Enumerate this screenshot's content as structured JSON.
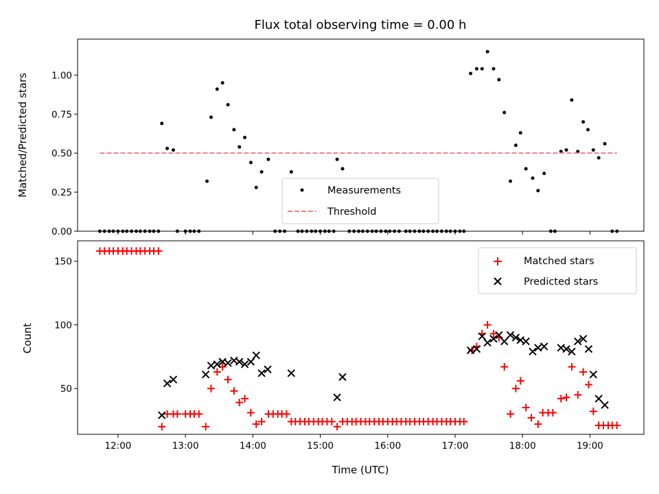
{
  "title": "Flux total observing time = 0.00 h",
  "chart_data": [
    {
      "type": "scatter",
      "ylabel": "Matched/Predicted stars",
      "xlim": [
        11.4,
        19.8
      ],
      "ylim": [
        0,
        1.23
      ],
      "yticks": [
        0.0,
        0.25,
        0.5,
        0.75,
        1.0
      ],
      "ytick_labels": [
        "0.00",
        "0.25",
        "0.50",
        "0.75",
        "1.00"
      ],
      "legend_position": "bottom-center",
      "series": [
        {
          "name": "Measurements",
          "color": "#000000",
          "marker": "dot",
          "points": [
            [
              11.73,
              0
            ],
            [
              11.8,
              0
            ],
            [
              11.87,
              0
            ],
            [
              11.93,
              0
            ],
            [
              12.0,
              0
            ],
            [
              12.07,
              0
            ],
            [
              12.13,
              0
            ],
            [
              12.2,
              0
            ],
            [
              12.27,
              0
            ],
            [
              12.33,
              0
            ],
            [
              12.4,
              0
            ],
            [
              12.47,
              0
            ],
            [
              12.53,
              0
            ],
            [
              12.6,
              0
            ],
            [
              12.65,
              0.69
            ],
            [
              12.73,
              0.53
            ],
            [
              12.82,
              0.52
            ],
            [
              12.88,
              0
            ],
            [
              13.0,
              0
            ],
            [
              13.07,
              0
            ],
            [
              13.13,
              0
            ],
            [
              13.2,
              0
            ],
            [
              13.32,
              0.32
            ],
            [
              13.38,
              0.73
            ],
            [
              13.47,
              0.91
            ],
            [
              13.55,
              0.95
            ],
            [
              13.63,
              0.81
            ],
            [
              13.72,
              0.65
            ],
            [
              13.8,
              0.54
            ],
            [
              13.88,
              0.6
            ],
            [
              13.97,
              0.44
            ],
            [
              14.05,
              0.28
            ],
            [
              14.13,
              0.38
            ],
            [
              14.23,
              0.46
            ],
            [
              14.33,
              0
            ],
            [
              14.4,
              0
            ],
            [
              14.47,
              0
            ],
            [
              14.57,
              0.38
            ],
            [
              14.67,
              0
            ],
            [
              14.73,
              0
            ],
            [
              14.8,
              0
            ],
            [
              14.87,
              0
            ],
            [
              14.93,
              0
            ],
            [
              15.0,
              0
            ],
            [
              15.07,
              0
            ],
            [
              15.13,
              0
            ],
            [
              15.2,
              0
            ],
            [
              15.25,
              0.46
            ],
            [
              15.33,
              0.4
            ],
            [
              15.43,
              0
            ],
            [
              15.5,
              0
            ],
            [
              15.57,
              0
            ],
            [
              15.63,
              0
            ],
            [
              15.7,
              0
            ],
            [
              15.77,
              0
            ],
            [
              15.83,
              0
            ],
            [
              15.9,
              0
            ],
            [
              15.97,
              0
            ],
            [
              16.03,
              0
            ],
            [
              16.1,
              0
            ],
            [
              16.17,
              0
            ],
            [
              16.27,
              0
            ],
            [
              16.33,
              0
            ],
            [
              16.4,
              0
            ],
            [
              16.47,
              0
            ],
            [
              16.53,
              0
            ],
            [
              16.6,
              0
            ],
            [
              16.67,
              0
            ],
            [
              16.73,
              0
            ],
            [
              16.8,
              0
            ],
            [
              16.87,
              0
            ],
            [
              16.93,
              0
            ],
            [
              17.0,
              0
            ],
            [
              17.07,
              0
            ],
            [
              17.13,
              0
            ],
            [
              17.23,
              1.01
            ],
            [
              17.32,
              1.04
            ],
            [
              17.4,
              1.04
            ],
            [
              17.48,
              1.15
            ],
            [
              17.57,
              1.04
            ],
            [
              17.65,
              0.97
            ],
            [
              17.73,
              0.76
            ],
            [
              17.82,
              0.32
            ],
            [
              17.9,
              0.55
            ],
            [
              17.97,
              0.63
            ],
            [
              18.05,
              0.4
            ],
            [
              18.15,
              0.34
            ],
            [
              18.23,
              0.26
            ],
            [
              18.32,
              0.37
            ],
            [
              18.42,
              0
            ],
            [
              18.48,
              0
            ],
            [
              18.57,
              0.51
            ],
            [
              18.65,
              0.52
            ],
            [
              18.73,
              0.84
            ],
            [
              18.82,
              0.51
            ],
            [
              18.9,
              0.7
            ],
            [
              18.97,
              0.65
            ],
            [
              19.05,
              0.52
            ],
            [
              19.13,
              0.47
            ],
            [
              19.22,
              0.56
            ],
            [
              19.33,
              0
            ],
            [
              19.4,
              0
            ]
          ]
        },
        {
          "name": "Threshold",
          "color": "#f08080",
          "style": "dashed",
          "points": [
            [
              11.73,
              0.5
            ],
            [
              19.4,
              0.5
            ]
          ]
        }
      ]
    },
    {
      "type": "scatter",
      "xlabel": "Time (UTC)",
      "ylabel": "Count",
      "xlim": [
        11.4,
        19.8
      ],
      "ylim": [
        14,
        166
      ],
      "yticks": [
        50,
        100,
        150
      ],
      "xticks": [
        12,
        13,
        14,
        15,
        16,
        17,
        18,
        19
      ],
      "xtick_labels": [
        "12:00",
        "13:00",
        "14:00",
        "15:00",
        "16:00",
        "17:00",
        "18:00",
        "19:00"
      ],
      "legend_position": "top-right",
      "series": [
        {
          "name": "Matched stars",
          "color": "#ff0000",
          "marker": "plus",
          "points": [
            [
              11.73,
              158
            ],
            [
              11.8,
              158
            ],
            [
              11.87,
              158
            ],
            [
              11.93,
              158
            ],
            [
              12.0,
              158
            ],
            [
              12.07,
              158
            ],
            [
              12.13,
              158
            ],
            [
              12.2,
              158
            ],
            [
              12.27,
              158
            ],
            [
              12.33,
              158
            ],
            [
              12.4,
              158
            ],
            [
              12.47,
              158
            ],
            [
              12.53,
              158
            ],
            [
              12.6,
              158
            ],
            [
              12.65,
              20
            ],
            [
              12.73,
              30
            ],
            [
              12.82,
              30
            ],
            [
              12.88,
              30
            ],
            [
              13.0,
              30
            ],
            [
              13.07,
              30
            ],
            [
              13.13,
              30
            ],
            [
              13.2,
              30
            ],
            [
              13.3,
              20
            ],
            [
              13.38,
              50
            ],
            [
              13.47,
              63
            ],
            [
              13.55,
              67
            ],
            [
              13.63,
              57
            ],
            [
              13.72,
              48
            ],
            [
              13.8,
              39
            ],
            [
              13.88,
              42
            ],
            [
              13.97,
              31
            ],
            [
              14.05,
              22
            ],
            [
              14.13,
              24
            ],
            [
              14.23,
              30
            ],
            [
              14.3,
              30
            ],
            [
              14.37,
              30
            ],
            [
              14.43,
              30
            ],
            [
              14.5,
              30
            ],
            [
              14.57,
              24
            ],
            [
              14.63,
              24
            ],
            [
              14.7,
              24
            ],
            [
              14.77,
              24
            ],
            [
              14.83,
              24
            ],
            [
              14.9,
              24
            ],
            [
              14.97,
              24
            ],
            [
              15.03,
              24
            ],
            [
              15.1,
              24
            ],
            [
              15.17,
              24
            ],
            [
              15.25,
              20
            ],
            [
              15.33,
              24
            ],
            [
              15.4,
              24
            ],
            [
              15.47,
              24
            ],
            [
              15.53,
              24
            ],
            [
              15.6,
              24
            ],
            [
              15.67,
              24
            ],
            [
              15.73,
              24
            ],
            [
              15.8,
              24
            ],
            [
              15.87,
              24
            ],
            [
              15.93,
              24
            ],
            [
              16.0,
              24
            ],
            [
              16.07,
              24
            ],
            [
              16.13,
              24
            ],
            [
              16.2,
              24
            ],
            [
              16.27,
              24
            ],
            [
              16.33,
              24
            ],
            [
              16.4,
              24
            ],
            [
              16.47,
              24
            ],
            [
              16.53,
              24
            ],
            [
              16.6,
              24
            ],
            [
              16.67,
              24
            ],
            [
              16.73,
              24
            ],
            [
              16.8,
              24
            ],
            [
              16.87,
              24
            ],
            [
              16.93,
              24
            ],
            [
              17.0,
              24
            ],
            [
              17.07,
              24
            ],
            [
              17.13,
              24
            ],
            [
              17.25,
              80
            ],
            [
              17.32,
              83
            ],
            [
              17.4,
              93
            ],
            [
              17.48,
              100
            ],
            [
              17.57,
              93
            ],
            [
              17.65,
              90
            ],
            [
              17.73,
              67
            ],
            [
              17.82,
              30
            ],
            [
              17.9,
              50
            ],
            [
              17.97,
              56
            ],
            [
              18.05,
              35
            ],
            [
              18.13,
              27
            ],
            [
              18.23,
              22
            ],
            [
              18.3,
              31
            ],
            [
              18.38,
              31
            ],
            [
              18.45,
              31
            ],
            [
              18.57,
              42
            ],
            [
              18.65,
              43
            ],
            [
              18.73,
              67
            ],
            [
              18.82,
              45
            ],
            [
              18.9,
              63
            ],
            [
              18.98,
              53
            ],
            [
              19.05,
              32
            ],
            [
              19.13,
              21
            ],
            [
              19.2,
              21
            ],
            [
              19.27,
              21
            ],
            [
              19.33,
              21
            ],
            [
              19.4,
              21
            ]
          ]
        },
        {
          "name": "Predicted stars",
          "color": "#000000",
          "marker": "x",
          "points": [
            [
              12.65,
              29
            ],
            [
              12.73,
              54
            ],
            [
              12.82,
              57
            ],
            [
              13.3,
              61
            ],
            [
              13.38,
              68
            ],
            [
              13.47,
              69
            ],
            [
              13.55,
              71
            ],
            [
              13.63,
              70
            ],
            [
              13.72,
              72
            ],
            [
              13.8,
              71
            ],
            [
              13.88,
              69
            ],
            [
              13.97,
              71
            ],
            [
              14.05,
              76
            ],
            [
              14.13,
              62
            ],
            [
              14.22,
              65
            ],
            [
              14.57,
              62
            ],
            [
              15.25,
              43
            ],
            [
              15.33,
              59
            ],
            [
              17.23,
              80
            ],
            [
              17.32,
              81
            ],
            [
              17.4,
              91
            ],
            [
              17.48,
              86
            ],
            [
              17.57,
              89
            ],
            [
              17.65,
              92
            ],
            [
              17.73,
              87
            ],
            [
              17.82,
              92
            ],
            [
              17.9,
              90
            ],
            [
              17.97,
              88
            ],
            [
              18.05,
              87
            ],
            [
              18.15,
              79
            ],
            [
              18.23,
              82
            ],
            [
              18.32,
              83
            ],
            [
              18.57,
              82
            ],
            [
              18.65,
              81
            ],
            [
              18.73,
              79
            ],
            [
              18.82,
              87
            ],
            [
              18.9,
              89
            ],
            [
              18.98,
              81
            ],
            [
              19.05,
              61
            ],
            [
              19.13,
              42
            ],
            [
              19.22,
              37
            ]
          ]
        }
      ]
    }
  ]
}
